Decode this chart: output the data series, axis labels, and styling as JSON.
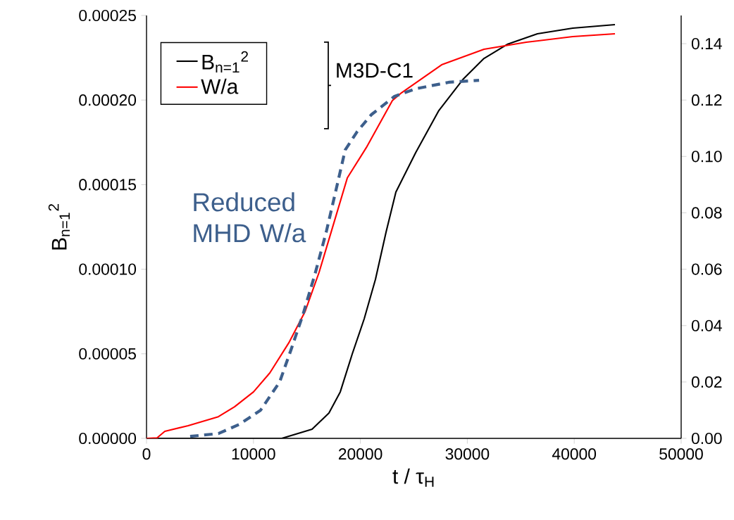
{
  "chart_data": {
    "type": "line",
    "xlabel": "t / τ$_{H}$",
    "ylabel": "B$_{n=1}$$^{2}$",
    "annotations": [
      "M3D-C1"
    ],
    "xlim": [
      0,
      50000
    ],
    "xticks": [
      0,
      10000,
      20000,
      30000,
      40000,
      50000
    ],
    "ylim": [
      0,
      0.00025
    ],
    "yticks": [
      {
        "value": 0,
        "label": "0.00000"
      },
      {
        "value": 5e-05,
        "label": "0.00005"
      },
      {
        "value": 0.0001,
        "label": "0.00010"
      },
      {
        "value": 0.00015,
        "label": "0.00015"
      },
      {
        "value": 0.0002,
        "label": "0.00020"
      },
      {
        "value": 0.00025,
        "label": "0.00025"
      }
    ],
    "y2lim": [
      0,
      0.15
    ],
    "y2ticks": [
      {
        "value": 0,
        "label": "0.00"
      },
      {
        "value": 0.02,
        "label": "0.02"
      },
      {
        "value": 0.04,
        "label": "0.04"
      },
      {
        "value": 0.06,
        "label": "0.06"
      },
      {
        "value": 0.08,
        "label": "0.08"
      },
      {
        "value": 0.1,
        "label": "0.10"
      },
      {
        "value": 0.12,
        "label": "0.12"
      },
      {
        "value": 0.14,
        "label": "0.14"
      }
    ],
    "grid": false,
    "legend": "top left",
    "marker": "none",
    "series": [
      {
        "name": "B$_{n=1}$$^{2}$",
        "color": "#000000",
        "line_style": "solid",
        "x": [
          0,
          10000,
          12650,
          15480,
          17060,
          18120,
          19240,
          20360,
          21410,
          22400,
          23320,
          25170,
          27340,
          29580,
          31560,
          33730,
          36560,
          39860,
          43810
        ],
        "values": [
          0,
          0,
          0,
          5.4e-06,
          1.5e-05,
          2.75e-05,
          4.99e-05,
          7.07e-05,
          9.4e-05,
          0.0001219,
          0.0001456,
          0.0001689,
          0.0001938,
          0.0002121,
          0.0002246,
          0.0002329,
          0.0002392,
          0.0002425,
          0.0002446
        ]
      },
      {
        "name": "W/a",
        "color": "#ff0000",
        "line_style": "solid",
        "axis": "y2",
        "x": [
          0,
          990,
          1710,
          3890,
          6720,
          8230,
          10010,
          11530,
          13310,
          14820,
          16140,
          17260,
          18780,
          20550,
          22990,
          23850,
          27600,
          31560,
          35510,
          39860,
          43810
        ],
        "values": [
          0,
          0.0002,
          0.0025,
          0.0045,
          0.0077,
          0.0112,
          0.0165,
          0.0232,
          0.0339,
          0.0449,
          0.0589,
          0.0731,
          0.0924,
          0.1031,
          0.1198,
          0.1226,
          0.1325,
          0.138,
          0.1405,
          0.1425,
          0.1435
        ]
      },
      {
        "name": "Reduced MHD W/a",
        "color": "#3d5f8c",
        "line_style": "dashed",
        "axis": "y2",
        "x": [
          4080,
          6720,
          8700,
          10670,
          12450,
          13510,
          14630,
          15750,
          16800,
          17720,
          18580,
          19700,
          21020,
          23190,
          25170,
          28260,
          31100
        ],
        "values": [
          0.0007,
          0.0017,
          0.005,
          0.01,
          0.02,
          0.0314,
          0.0439,
          0.0582,
          0.0731,
          0.0881,
          0.1023,
          0.1088,
          0.1148,
          0.1213,
          0.124,
          0.1263,
          0.127
        ]
      }
    ]
  }
}
